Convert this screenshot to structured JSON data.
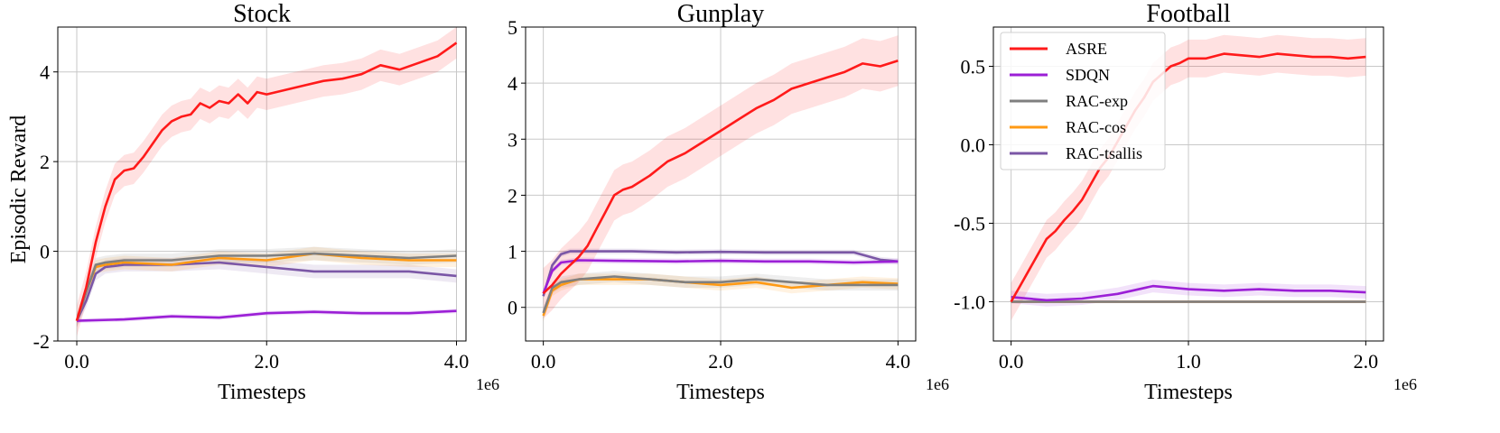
{
  "figure": {
    "ylabel": "Episodic Reward"
  },
  "legend": [
    {
      "name": "ASRE",
      "color": "#ff1a1a"
    },
    {
      "name": "SDQN",
      "color": "#9b1fd6"
    },
    {
      "name": "RAC-exp",
      "color": "#7f7f7f"
    },
    {
      "name": "RAC-cos",
      "color": "#ff9a14"
    },
    {
      "name": "RAC-tsallis",
      "color": "#7b57a6"
    }
  ],
  "chart_data": [
    {
      "type": "line",
      "title": "Stock",
      "xlabel": "Timesteps",
      "ylabel": "Episodic Reward",
      "x_offset_label": "1e6",
      "xlim": [
        -0.2,
        4.1
      ],
      "ylim": [
        -2.0,
        5.0
      ],
      "xticks": [
        0.0,
        2.0,
        4.0
      ],
      "xtick_labels": [
        "0.0",
        "2.0",
        "4.0"
      ],
      "yticks": [
        -2,
        0,
        2,
        4
      ],
      "ytick_labels": [
        "-2",
        "0",
        "2",
        "4"
      ],
      "grid": true,
      "series": [
        {
          "name": "ASRE",
          "color": "#ff1a1a",
          "band": 0.35,
          "x": [
            0,
            0.1,
            0.2,
            0.3,
            0.4,
            0.5,
            0.6,
            0.7,
            0.8,
            0.9,
            1.0,
            1.1,
            1.2,
            1.3,
            1.4,
            1.5,
            1.6,
            1.7,
            1.8,
            1.9,
            2.0,
            2.2,
            2.4,
            2.6,
            2.8,
            3.0,
            3.2,
            3.4,
            3.6,
            3.8,
            4.0
          ],
          "y": [
            -1.55,
            -0.8,
            0.2,
            1.0,
            1.6,
            1.8,
            1.85,
            2.1,
            2.4,
            2.7,
            2.9,
            3.0,
            3.05,
            3.3,
            3.2,
            3.35,
            3.3,
            3.5,
            3.3,
            3.55,
            3.5,
            3.6,
            3.7,
            3.8,
            3.85,
            3.95,
            4.15,
            4.05,
            4.2,
            4.35,
            4.65
          ]
        },
        {
          "name": "SDQN",
          "color": "#9b1fd6",
          "band": 0.05,
          "x": [
            0,
            0.5,
            1.0,
            1.5,
            2.0,
            2.5,
            3.0,
            3.5,
            4.0
          ],
          "y": [
            -1.55,
            -1.52,
            -1.45,
            -1.48,
            -1.38,
            -1.35,
            -1.38,
            -1.38,
            -1.33
          ]
        },
        {
          "name": "RAC-exp",
          "color": "#7f7f7f",
          "band": 0.15,
          "x": [
            0,
            0.1,
            0.2,
            0.3,
            0.5,
            1.0,
            1.5,
            2.0,
            2.5,
            3.0,
            3.5,
            4.0
          ],
          "y": [
            -1.55,
            -0.9,
            -0.3,
            -0.25,
            -0.2,
            -0.2,
            -0.1,
            -0.1,
            -0.05,
            -0.1,
            -0.15,
            -0.1
          ]
        },
        {
          "name": "RAC-cos",
          "color": "#ff9a14",
          "band": 0.15,
          "x": [
            0,
            0.1,
            0.2,
            0.3,
            0.5,
            1.0,
            1.5,
            2.0,
            2.5,
            3.0,
            3.5,
            4.0
          ],
          "y": [
            -1.55,
            -0.9,
            -0.35,
            -0.3,
            -0.25,
            -0.3,
            -0.15,
            -0.2,
            -0.05,
            -0.15,
            -0.2,
            -0.2
          ]
        },
        {
          "name": "RAC-tsallis",
          "color": "#7b57a6",
          "band": 0.15,
          "x": [
            0,
            0.1,
            0.2,
            0.3,
            0.5,
            1.0,
            1.5,
            2.0,
            2.5,
            3.0,
            3.5,
            4.0
          ],
          "y": [
            -1.55,
            -1.1,
            -0.5,
            -0.35,
            -0.3,
            -0.3,
            -0.25,
            -0.35,
            -0.45,
            -0.45,
            -0.45,
            -0.55
          ]
        }
      ]
    },
    {
      "type": "line",
      "title": "Gunplay",
      "xlabel": "Timesteps",
      "x_offset_label": "1e6",
      "xlim": [
        -0.2,
        4.2
      ],
      "ylim": [
        -0.6,
        5.0
      ],
      "xticks": [
        0.0,
        2.0,
        4.0
      ],
      "xtick_labels": [
        "0.0",
        "2.0",
        "4.0"
      ],
      "yticks": [
        0,
        1,
        2,
        3,
        4,
        5
      ],
      "ytick_labels": [
        "0",
        "1",
        "2",
        "3",
        "4",
        "5"
      ],
      "grid": true,
      "series": [
        {
          "name": "ASRE",
          "color": "#ff1a1a",
          "band": 0.45,
          "x": [
            0,
            0.1,
            0.2,
            0.3,
            0.4,
            0.5,
            0.6,
            0.7,
            0.8,
            0.9,
            1.0,
            1.2,
            1.4,
            1.6,
            1.8,
            2.0,
            2.2,
            2.4,
            2.6,
            2.8,
            3.0,
            3.2,
            3.4,
            3.6,
            3.8,
            4.0
          ],
          "y": [
            0.25,
            0.4,
            0.6,
            0.75,
            0.9,
            1.1,
            1.4,
            1.7,
            2.0,
            2.1,
            2.15,
            2.35,
            2.6,
            2.75,
            2.95,
            3.15,
            3.35,
            3.55,
            3.7,
            3.9,
            4.0,
            4.1,
            4.2,
            4.35,
            4.3,
            4.4
          ]
        },
        {
          "name": "SDQN",
          "color": "#9b1fd6",
          "band": 0.05,
          "x": [
            0,
            0.1,
            0.2,
            0.4,
            0.8,
            1.5,
            2.0,
            2.5,
            3.0,
            3.5,
            4.0
          ],
          "y": [
            0.25,
            0.65,
            0.8,
            0.84,
            0.83,
            0.82,
            0.83,
            0.82,
            0.82,
            0.8,
            0.82
          ]
        },
        {
          "name": "RAC-exp",
          "color": "#7f7f7f",
          "band": 0.1,
          "x": [
            0,
            0.1,
            0.2,
            0.4,
            0.8,
            1.2,
            1.6,
            2.0,
            2.4,
            2.8,
            3.2,
            3.6,
            4.0
          ],
          "y": [
            -0.1,
            0.35,
            0.45,
            0.5,
            0.55,
            0.5,
            0.45,
            0.45,
            0.5,
            0.45,
            0.4,
            0.4,
            0.4
          ]
        },
        {
          "name": "RAC-cos",
          "color": "#ff9a14",
          "band": 0.1,
          "x": [
            0,
            0.1,
            0.2,
            0.4,
            0.8,
            1.2,
            1.6,
            2.0,
            2.4,
            2.8,
            3.2,
            3.6,
            4.0
          ],
          "y": [
            -0.15,
            0.3,
            0.4,
            0.5,
            0.5,
            0.5,
            0.45,
            0.4,
            0.45,
            0.35,
            0.4,
            0.45,
            0.42
          ]
        },
        {
          "name": "RAC-tsallis",
          "color": "#7b57a6",
          "band": 0.05,
          "x": [
            0,
            0.1,
            0.2,
            0.3,
            0.5,
            1.0,
            1.5,
            2.0,
            2.5,
            3.0,
            3.5,
            3.8,
            4.0
          ],
          "y": [
            0.2,
            0.75,
            0.95,
            1.0,
            1.0,
            1.0,
            0.98,
            0.99,
            0.98,
            0.98,
            0.98,
            0.85,
            0.82
          ]
        }
      ]
    },
    {
      "type": "line",
      "title": "Football",
      "xlabel": "Timesteps",
      "x_offset_label": "1e6",
      "xlim": [
        -0.1,
        2.1
      ],
      "ylim": [
        -1.25,
        0.75
      ],
      "xticks": [
        0.0,
        1.0,
        2.0
      ],
      "xtick_labels": [
        "0.0",
        "1.0",
        "2.0"
      ],
      "yticks": [
        -1.0,
        -0.5,
        0.0,
        0.5
      ],
      "ytick_labels": [
        "-1.0",
        "-0.5",
        "0.0",
        "0.5"
      ],
      "grid": true,
      "legend": {
        "placement": "upper-left"
      },
      "series": [
        {
          "name": "ASRE",
          "color": "#ff1a1a",
          "band": 0.12,
          "x": [
            0,
            0.05,
            0.1,
            0.15,
            0.2,
            0.25,
            0.3,
            0.35,
            0.4,
            0.45,
            0.5,
            0.55,
            0.6,
            0.65,
            0.7,
            0.75,
            0.8,
            0.85,
            0.9,
            0.95,
            1.0,
            1.1,
            1.2,
            1.3,
            1.4,
            1.5,
            1.6,
            1.7,
            1.8,
            1.9,
            2.0
          ],
          "y": [
            -1.0,
            -0.9,
            -0.8,
            -0.7,
            -0.6,
            -0.55,
            -0.48,
            -0.42,
            -0.35,
            -0.25,
            -0.15,
            -0.08,
            0.02,
            0.12,
            0.22,
            0.3,
            0.4,
            0.45,
            0.5,
            0.52,
            0.55,
            0.55,
            0.58,
            0.57,
            0.56,
            0.58,
            0.57,
            0.56,
            0.56,
            0.55,
            0.56
          ]
        },
        {
          "name": "SDQN",
          "color": "#9b1fd6",
          "band": 0.04,
          "x": [
            0,
            0.2,
            0.4,
            0.6,
            0.8,
            1.0,
            1.2,
            1.4,
            1.6,
            1.8,
            2.0
          ],
          "y": [
            -0.97,
            -0.99,
            -0.98,
            -0.95,
            -0.9,
            -0.92,
            -0.93,
            -0.92,
            -0.93,
            -0.93,
            -0.94
          ]
        },
        {
          "name": "RAC-exp",
          "color": "#7f7f7f",
          "band": 0.0,
          "x": [
            0,
            1.0,
            2.0
          ],
          "y": [
            -1.0,
            -1.0,
            -1.0
          ]
        },
        {
          "name": "RAC-cos",
          "color": "#ff9a14",
          "band": 0.0,
          "x": [
            0,
            1.0,
            2.0
          ],
          "y": [
            -1.0,
            -1.0,
            -1.0
          ]
        },
        {
          "name": "RAC-tsallis",
          "color": "#7b57a6",
          "band": 0.0,
          "x": [
            0,
            1.0,
            2.0
          ],
          "y": [
            -1.0,
            -1.0,
            -1.0
          ]
        }
      ]
    }
  ]
}
